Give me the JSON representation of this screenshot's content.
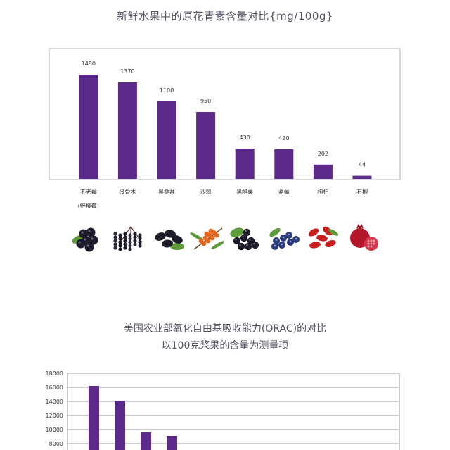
{
  "chart_data": [
    {
      "type": "bar",
      "title": "新鲜水果中的原花青素含量对比{mg/100g}",
      "categories": [
        "不老莓",
        "接骨木",
        "黑桑葚",
        "沙棘",
        "黑醋栗",
        "蓝莓",
        "枸杞",
        "石榴"
      ],
      "category_sublabels": [
        "(野樱莓)",
        "",
        "",
        "",
        "",
        "",
        "",
        ""
      ],
      "values": [
        1480,
        1370,
        1100,
        950,
        430,
        420,
        202,
        44
      ],
      "value_labels": [
        "1480",
        "1370",
        "1100",
        "950",
        "430",
        "420",
        "202",
        "44"
      ],
      "ylim": [
        0,
        1480
      ],
      "grid": false,
      "bar_color": "#5b2a8a",
      "fruit_icons": [
        "aronia-berries-icon",
        "elderberries-icon",
        "black-mulberries-icon",
        "sea-buckthorn-icon",
        "blackcurrants-icon",
        "blueberries-icon",
        "goji-berries-icon",
        "pomegranate-icon"
      ]
    },
    {
      "type": "bar",
      "title": "美国农业部氧化自由基吸收能力(ORAC)的对比",
      "subtitle": "以100克浆果的含量为测量项",
      "values": [
        16200,
        14100,
        9600,
        9100
      ],
      "ylim": [
        0,
        18000
      ],
      "yticks": [
        18000,
        16000,
        14000,
        12000,
        10000,
        8000
      ],
      "grid": true,
      "bar_color": "#5b2a8a"
    }
  ]
}
